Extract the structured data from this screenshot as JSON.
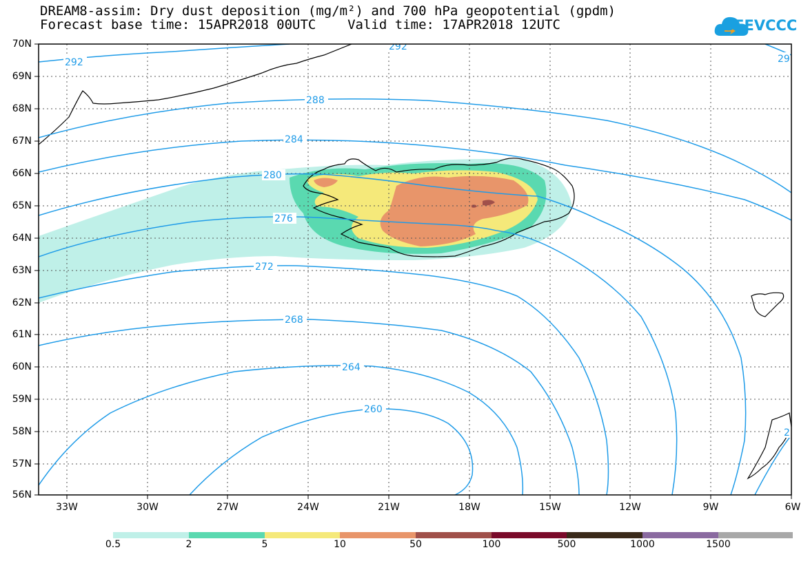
{
  "title_line1": "DREAM8-assim: Dry dust deposition (mg/m²) and 700 hPa geopotential (gpdm)",
  "title_line2": "Forecast base time: 15APR2018 00UTC    Valid time: 17APR2018 12UTC",
  "logo_text": "SEEVCCC",
  "logo_icon": "cloud-icon",
  "lat_labels": [
    "70N",
    "69N",
    "68N",
    "67N",
    "66N",
    "65N",
    "64N",
    "63N",
    "62N",
    "61N",
    "60N",
    "59N",
    "58N",
    "57N",
    "56N"
  ],
  "lon_labels": [
    "33W",
    "30W",
    "27W",
    "24W",
    "21W",
    "18W",
    "15W",
    "12W",
    "9W",
    "6W"
  ],
  "contour_labels": [
    "292",
    "288",
    "284",
    "280",
    "276",
    "272",
    "268",
    "264",
    "260",
    "29",
    "2"
  ],
  "legend": {
    "labels": [
      "0.5",
      "2",
      "5",
      "10",
      "50",
      "100",
      "500",
      "1000",
      "1500"
    ],
    "colors": [
      "#bff0e8",
      "#5ad9b0",
      "#f5e97a",
      "#e8956a",
      "#a0504a",
      "#7a0a2a",
      "#3a2a1a",
      "#8a6aa0",
      "#a8a8a8"
    ]
  },
  "colors": {
    "contour": "#1e9be8",
    "coast": "#000000",
    "frame": "#000000"
  }
}
